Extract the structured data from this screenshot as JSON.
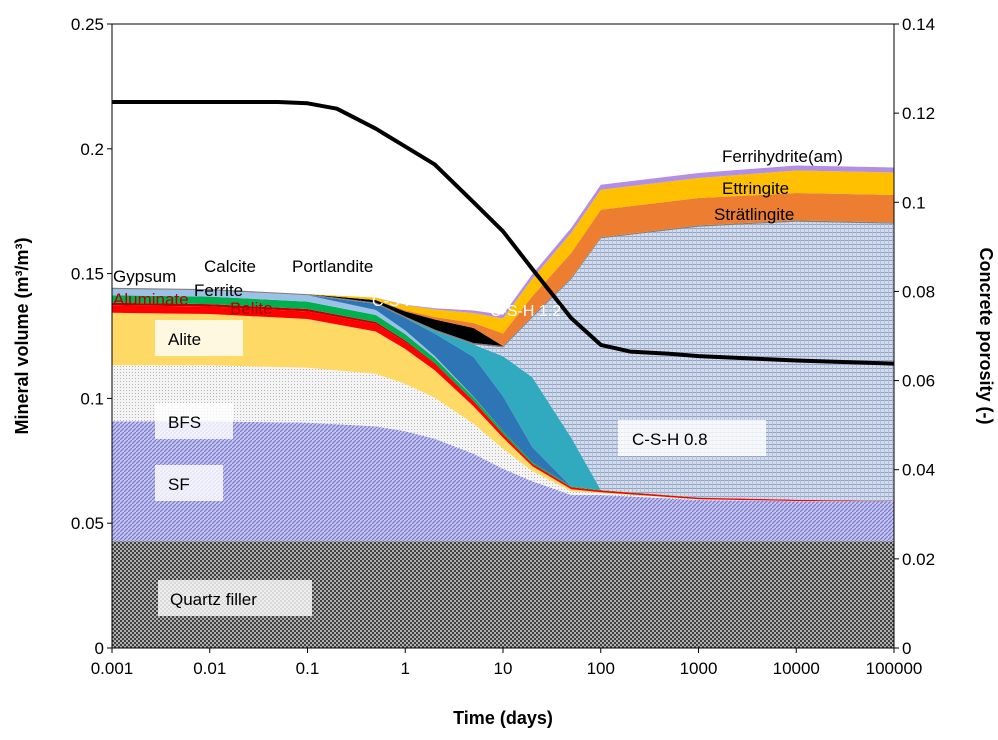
{
  "chart_data": {
    "type": "area",
    "xlabel": "Time (days)",
    "ylabel_left": "Mineral volume (m³/m³)",
    "ylabel_right": "Concrete porosity (-)",
    "x_scale": "log",
    "xlim": [
      0.001,
      100000
    ],
    "ylim_left": [
      0,
      0.25
    ],
    "ylim_right": [
      0,
      0.14
    ],
    "x_tick_labels": [
      "0.001",
      "0.01",
      "0.1",
      "1",
      "10",
      "100",
      "1000",
      "10000",
      "100000"
    ],
    "y_left_tick_labels": [
      "0",
      "0.05",
      "0.1",
      "0.15",
      "0.2",
      "0.25"
    ],
    "y_right_tick_labels": [
      "0",
      "0.02",
      "0.04",
      "0.06",
      "0.08",
      "0.1",
      "0.12",
      "0.14"
    ],
    "x": [
      0.001,
      0.01,
      0.1,
      0.5,
      1,
      2,
      5,
      10,
      20,
      50,
      100,
      1000,
      10000,
      100000
    ],
    "series": [
      {
        "name": "Quartz filler",
        "color": "#555555",
        "pattern": "checker",
        "values": [
          0.0428,
          0.0428,
          0.0428,
          0.0428,
          0.0428,
          0.0428,
          0.0428,
          0.0428,
          0.0428,
          0.0428,
          0.0428,
          0.0428,
          0.0428,
          0.0428
        ]
      },
      {
        "name": "SF",
        "color": "#9f9fdf",
        "pattern": "hatch",
        "values": [
          0.048,
          0.048,
          0.0475,
          0.046,
          0.044,
          0.041,
          0.035,
          0.029,
          0.024,
          0.0185,
          0.0185,
          0.0165,
          0.016,
          0.016
        ]
      },
      {
        "name": "BFS",
        "color": "#e6e6e6",
        "pattern": "dots",
        "values": [
          0.0225,
          0.0225,
          0.022,
          0.021,
          0.019,
          0.0165,
          0.012,
          0.008,
          0.004,
          0.0015,
          0.0008,
          0.0003,
          0.0001,
          0
        ]
      },
      {
        "name": "Alite",
        "color": "#ffd966",
        "values": [
          0.021,
          0.0205,
          0.0195,
          0.017,
          0.014,
          0.011,
          0.007,
          0.0045,
          0.002,
          0.0008,
          0.0003,
          0,
          0,
          0
        ]
      },
      {
        "name": "Belite",
        "color": "#ff0000",
        "values": [
          0.003,
          0.003,
          0.003,
          0.003,
          0.0028,
          0.0025,
          0.002,
          0.0015,
          0.001,
          0.0008,
          0.0007,
          0.0006,
          0.0005,
          0
        ]
      },
      {
        "name": "Aluminate",
        "color": "#c00000",
        "values": [
          0.001,
          0.001,
          0.001,
          0.0008,
          0.0006,
          0.0004,
          0.0002,
          0.0001,
          0,
          0,
          0,
          0,
          0,
          0
        ]
      },
      {
        "name": "Ferrite",
        "color": "#00b050",
        "values": [
          0.003,
          0.003,
          0.003,
          0.0028,
          0.0025,
          0.002,
          0.0014,
          0.001,
          0.0006,
          0.0003,
          0.0002,
          0.0001,
          0,
          0
        ]
      },
      {
        "name": "Gypsum",
        "color": "#9bc2e6",
        "values": [
          0.0025,
          0.0025,
          0.0025,
          0.002,
          0.0015,
          0.0008,
          0.0002,
          0,
          0,
          0,
          0,
          0,
          0,
          0
        ]
      },
      {
        "name": "C-S-H 1.6",
        "color": "#2e75b6",
        "values": [
          0,
          0,
          0,
          0.0025,
          0.005,
          0.009,
          0.016,
          0.014,
          0.006,
          0,
          0,
          0,
          0,
          0
        ]
      },
      {
        "name": "C-S-H 1.2",
        "color": "#31a9bf",
        "values": [
          0,
          0,
          0,
          0,
          0,
          0.001,
          0.005,
          0.016,
          0.028,
          0.0195,
          0,
          0,
          0,
          0
        ]
      },
      {
        "name": "C-S-H 0.8",
        "color": "#b4c7e7",
        "pattern": "grid",
        "values": [
          0,
          0,
          0,
          0,
          0,
          0,
          0,
          0.0035,
          0.024,
          0.0636,
          0.1008,
          0.1085,
          0.1114,
          0.1112
        ]
      },
      {
        "name": "Calcite",
        "color": "#7f7f7f",
        "values": [
          0.0005,
          0.0005,
          0.0005,
          0.0005,
          0.0006,
          0.0006,
          0.0006,
          0.0006,
          0.0006,
          0.0005,
          0.0005,
          0.0005,
          0.0005,
          0.0005
        ]
      },
      {
        "name": "Portlandite",
        "color": "#000000",
        "values": [
          0,
          0,
          0,
          0.001,
          0.002,
          0.004,
          0.006,
          0,
          0,
          0,
          0,
          0,
          0,
          0
        ]
      },
      {
        "name": "Strätlingite",
        "color": "#ed7d31",
        "values": [
          0,
          0,
          0,
          0,
          0.0005,
          0.001,
          0.002,
          0.005,
          0.008,
          0.01,
          0.011,
          0.011,
          0.011,
          0.011
        ]
      },
      {
        "name": "Ettringite",
        "color": "#ffc000",
        "values": [
          0,
          0,
          0,
          0.001,
          0.002,
          0.003,
          0.004,
          0.006,
          0.007,
          0.008,
          0.008,
          0.008,
          0.009,
          0.009
        ]
      },
      {
        "name": "Ferrihydrite(am)",
        "color": "#b18ee8",
        "values": [
          0,
          0,
          0,
          0,
          0.0002,
          0.0005,
          0.001,
          0.0015,
          0.0018,
          0.002,
          0.002,
          0.002,
          0.002,
          0.002
        ]
      }
    ],
    "porosity": {
      "name": "Concrete porosity",
      "axis": "right",
      "color": "#000000",
      "x": [
        0.001,
        0.01,
        0.05,
        0.1,
        0.2,
        0.5,
        1,
        2,
        5,
        10,
        20,
        50,
        100,
        200,
        500,
        1000,
        10000,
        100000
      ],
      "values": [
        0.1225,
        0.1225,
        0.1225,
        0.1222,
        0.121,
        0.1165,
        0.1125,
        0.1085,
        0.1,
        0.0935,
        0.085,
        0.074,
        0.068,
        0.0665,
        0.066,
        0.0655,
        0.0645,
        0.0638
      ]
    },
    "annotations": {
      "gypsum": "Gypsum",
      "calcite": "Calcite",
      "portlandite": "Portlandite",
      "ferrite": "Ferrite",
      "aluminate": "Aluminate",
      "belite": "Belite",
      "alite": "Alite",
      "bfs": "BFS",
      "sf": "SF",
      "quartz": "Quartz filler",
      "csh16": "C-S-H 1.6",
      "csh12": "C-S-H 1.2",
      "csh08": "C-S-H 0.8",
      "ferrihydrite": "Ferrihydrite(am)",
      "ettringite": "Ettringite",
      "stratlingite": "Strätlingite"
    }
  }
}
